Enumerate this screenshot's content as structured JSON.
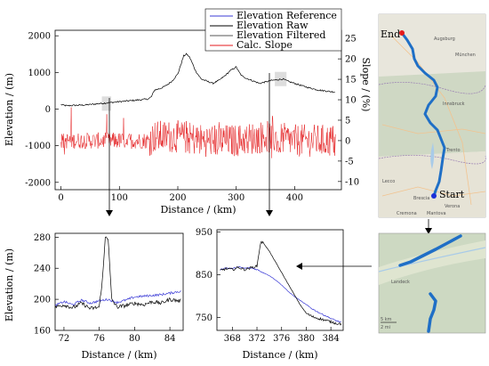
{
  "chart_data": [
    {
      "id": "main",
      "type": "line",
      "xlabel": "Distance / (km)",
      "ylabel_left": "Elevation / (m)",
      "ylabel_right": "Slope / (%)",
      "xlim": [
        -10,
        480
      ],
      "ylim_left": [
        -2200,
        2150
      ],
      "ylim_right": [
        -12,
        27
      ],
      "xticks": [
        "0",
        "100",
        "200",
        "300",
        "400"
      ],
      "yticks_left": [
        "2000",
        "1000",
        "0",
        "-1000",
        "-2000"
      ],
      "yticks_right": [
        "25",
        "20",
        "15",
        "10",
        "5",
        "0",
        "-5",
        "-10"
      ],
      "legend": {
        "position": "top-right",
        "entries": [
          {
            "label": "Elevation Reference",
            "color": "#3b3bd6"
          },
          {
            "label": "Elevation Raw",
            "color": "#000000"
          },
          {
            "label": "Elevation Filtered",
            "color": "#555555"
          },
          {
            "label": "Calc. Slope",
            "color": "#e41a1c"
          }
        ]
      },
      "series": [
        {
          "name": "Elevation Raw",
          "axis": "left",
          "x": [
            0,
            10,
            20,
            40,
            60,
            80,
            100,
            120,
            140,
            150,
            155,
            160,
            170,
            180,
            190,
            200,
            205,
            210,
            215,
            220,
            225,
            230,
            240,
            250,
            260,
            270,
            280,
            290,
            300,
            305,
            310,
            320,
            330,
            340,
            350,
            360,
            370,
            380,
            390,
            400,
            410,
            420,
            430,
            440,
            450,
            460,
            470
          ],
          "y": [
            120,
            90,
            100,
            110,
            140,
            170,
            200,
            230,
            260,
            280,
            340,
            520,
            560,
            640,
            760,
            960,
            1200,
            1450,
            1500,
            1420,
            1250,
            1050,
            820,
            760,
            700,
            780,
            900,
            1050,
            1150,
            1000,
            900,
            820,
            760,
            700,
            740,
            780,
            800,
            820,
            750,
            700,
            650,
            600,
            560,
            520,
            500,
            480,
            460
          ]
        },
        {
          "name": "Calc. Slope",
          "axis": "right",
          "noise_amplitude": 2.5,
          "x": [
            0,
            50,
            100,
            150,
            160,
            200,
            250,
            300,
            350,
            400,
            450,
            470
          ],
          "y": [
            0,
            0,
            0,
            0,
            1,
            1,
            0,
            0,
            1,
            0,
            0,
            0
          ]
        }
      ],
      "highlights": [
        {
          "x_range": [
            70,
            86
          ],
          "y": 150,
          "label": "zoom-1"
        },
        {
          "x_range": [
            366,
            386
          ],
          "y": 820,
          "label": "zoom-2"
        }
      ]
    },
    {
      "id": "zoom1",
      "type": "line",
      "xlabel": "Distance / (km)",
      "ylabel": "Elevation / (m)",
      "xlim": [
        71,
        85.5
      ],
      "ylim": [
        160,
        285
      ],
      "xticks": [
        "72",
        "76",
        "80",
        "84"
      ],
      "yticks": [
        "280",
        "240",
        "200",
        "160"
      ],
      "series": [
        {
          "name": "Elevation Reference",
          "color": "#3b3bd6",
          "x": [
            71,
            72,
            73,
            74,
            75,
            76,
            77,
            78,
            79,
            80,
            81,
            82,
            83,
            84,
            85
          ],
          "y": [
            192,
            197,
            193,
            199,
            195,
            198,
            200,
            196,
            199,
            203,
            204,
            205,
            206,
            208,
            210
          ]
        },
        {
          "name": "Elevation Raw",
          "color": "#000000",
          "x": [
            71,
            72,
            73,
            74,
            75,
            76,
            76.4,
            76.7,
            77,
            77.4,
            78,
            79,
            80,
            81,
            82,
            83,
            84,
            85
          ],
          "y": [
            190,
            193,
            189,
            195,
            188,
            190,
            230,
            283,
            278,
            200,
            190,
            192,
            195,
            193,
            197,
            195,
            200,
            198
          ]
        }
      ]
    },
    {
      "id": "zoom2",
      "type": "line",
      "xlabel": "Distance / (km)",
      "xlim": [
        365.5,
        386
      ],
      "ylim": [
        720,
        955
      ],
      "xticks": [
        "368",
        "372",
        "376",
        "380",
        "384"
      ],
      "yticks": [
        "950",
        "850",
        "750"
      ],
      "series": [
        {
          "name": "Elevation Reference",
          "color": "#3b3bd6",
          "x": [
            366,
            367,
            368,
            369,
            370,
            371,
            372,
            373,
            374,
            375,
            376,
            377,
            378,
            379,
            380,
            381,
            382,
            383,
            384,
            385,
            386
          ],
          "y": [
            862,
            866,
            864,
            868,
            865,
            866,
            862,
            855,
            848,
            838,
            826,
            812,
            800,
            790,
            780,
            770,
            762,
            755,
            748,
            742,
            737
          ]
        },
        {
          "name": "Elevation Raw",
          "color": "#000000",
          "x": [
            366,
            367,
            368,
            369,
            370,
            371,
            372,
            372.6,
            373,
            374,
            375,
            376,
            377,
            378,
            379,
            380,
            381,
            382,
            383,
            384,
            385,
            386
          ],
          "y": [
            860,
            864,
            862,
            867,
            862,
            866,
            870,
            926,
            925,
            905,
            880,
            855,
            830,
            805,
            780,
            760,
            752,
            748,
            744,
            740,
            736,
            735
          ]
        }
      ]
    }
  ],
  "map_main": {
    "labels": {
      "end": "End",
      "start": "Start"
    },
    "colors": {
      "route": "#1f6fc6",
      "end_marker": "#e31a1c",
      "start_marker": "#1c2fd8"
    },
    "place_names": [
      "Augsburg",
      "München",
      "Innsbruck",
      "Trento",
      "Verona",
      "Brescia",
      "Cremona",
      "Mantova",
      "Lecco"
    ]
  },
  "map_zoom": {
    "place_names": [
      "Landeck"
    ],
    "scale": {
      "km": "5 km",
      "mi": "2 mi"
    },
    "colors": {
      "route": "#1f6fc6"
    }
  }
}
